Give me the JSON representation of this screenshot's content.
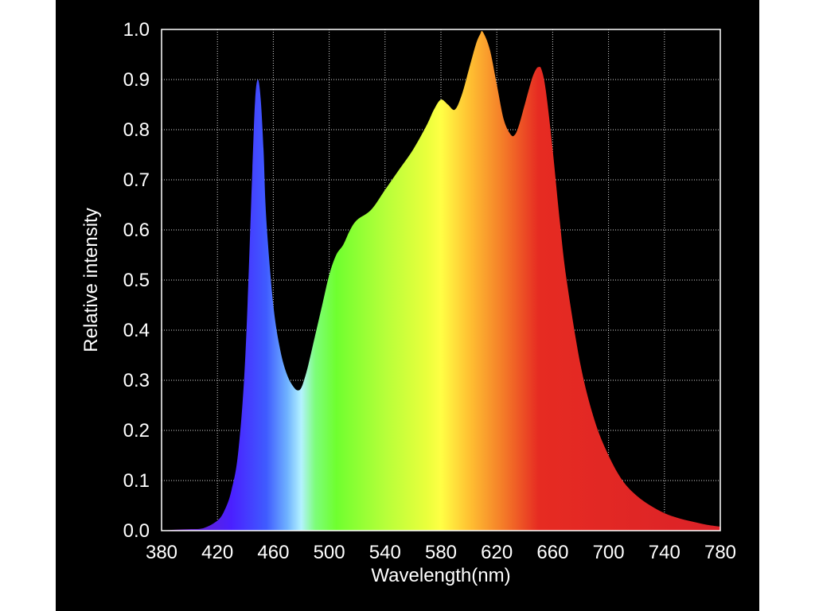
{
  "chart_data": {
    "type": "area",
    "title": "",
    "xlabel": "Wavelength(nm)",
    "ylabel": "Relative intensity",
    "xlim": [
      380,
      780
    ],
    "ylim": [
      0.0,
      1.0
    ],
    "grid": true,
    "x_ticks": [
      "380",
      "420",
      "460",
      "500",
      "540",
      "580",
      "620",
      "660",
      "700",
      "740",
      "780"
    ],
    "y_ticks": [
      "0.0",
      "0.1",
      "0.2",
      "0.3",
      "0.4",
      "0.5",
      "0.6",
      "0.7",
      "0.8",
      "0.9",
      "1.0"
    ],
    "x": [
      380,
      390,
      400,
      410,
      420,
      425,
      430,
      435,
      440,
      445,
      447,
      449,
      451,
      453,
      455,
      460,
      465,
      470,
      475,
      478,
      480,
      482,
      485,
      490,
      495,
      500,
      505,
      510,
      515,
      520,
      530,
      540,
      550,
      560,
      570,
      575,
      580,
      585,
      590,
      595,
      600,
      605,
      608,
      610,
      615,
      620,
      625,
      630,
      633,
      636,
      640,
      645,
      648,
      650,
      652,
      655,
      660,
      665,
      670,
      680,
      690,
      700,
      710,
      720,
      730,
      740,
      750,
      760,
      770,
      780
    ],
    "y": [
      0.0,
      0.002,
      0.003,
      0.005,
      0.02,
      0.04,
      0.08,
      0.16,
      0.35,
      0.72,
      0.86,
      0.9,
      0.86,
      0.76,
      0.62,
      0.45,
      0.36,
      0.31,
      0.285,
      0.28,
      0.285,
      0.3,
      0.33,
      0.39,
      0.45,
      0.51,
      0.55,
      0.57,
      0.6,
      0.62,
      0.64,
      0.68,
      0.72,
      0.76,
      0.81,
      0.84,
      0.86,
      0.85,
      0.84,
      0.87,
      0.92,
      0.97,
      0.99,
      0.995,
      0.96,
      0.89,
      0.82,
      0.79,
      0.79,
      0.81,
      0.85,
      0.9,
      0.92,
      0.925,
      0.92,
      0.88,
      0.76,
      0.62,
      0.5,
      0.33,
      0.22,
      0.15,
      0.1,
      0.07,
      0.05,
      0.035,
      0.025,
      0.018,
      0.012,
      0.008
    ],
    "spectrum_colors": [
      {
        "wavelength": 380,
        "color": "#7a1fa0"
      },
      {
        "wavelength": 430,
        "color": "#4a20ff"
      },
      {
        "wavelength": 455,
        "color": "#3f5bff"
      },
      {
        "wavelength": 470,
        "color": "#6fb2ff"
      },
      {
        "wavelength": 480,
        "color": "#b4f2ff"
      },
      {
        "wavelength": 490,
        "color": "#7dfd7a"
      },
      {
        "wavelength": 505,
        "color": "#6fff2f"
      },
      {
        "wavelength": 540,
        "color": "#b6ff3a"
      },
      {
        "wavelength": 570,
        "color": "#eaff3c"
      },
      {
        "wavelength": 580,
        "color": "#ffff45"
      },
      {
        "wavelength": 600,
        "color": "#ffc232"
      },
      {
        "wavelength": 625,
        "color": "#f47a28"
      },
      {
        "wavelength": 650,
        "color": "#e62b22"
      },
      {
        "wavelength": 780,
        "color": "#db2228"
      }
    ]
  }
}
